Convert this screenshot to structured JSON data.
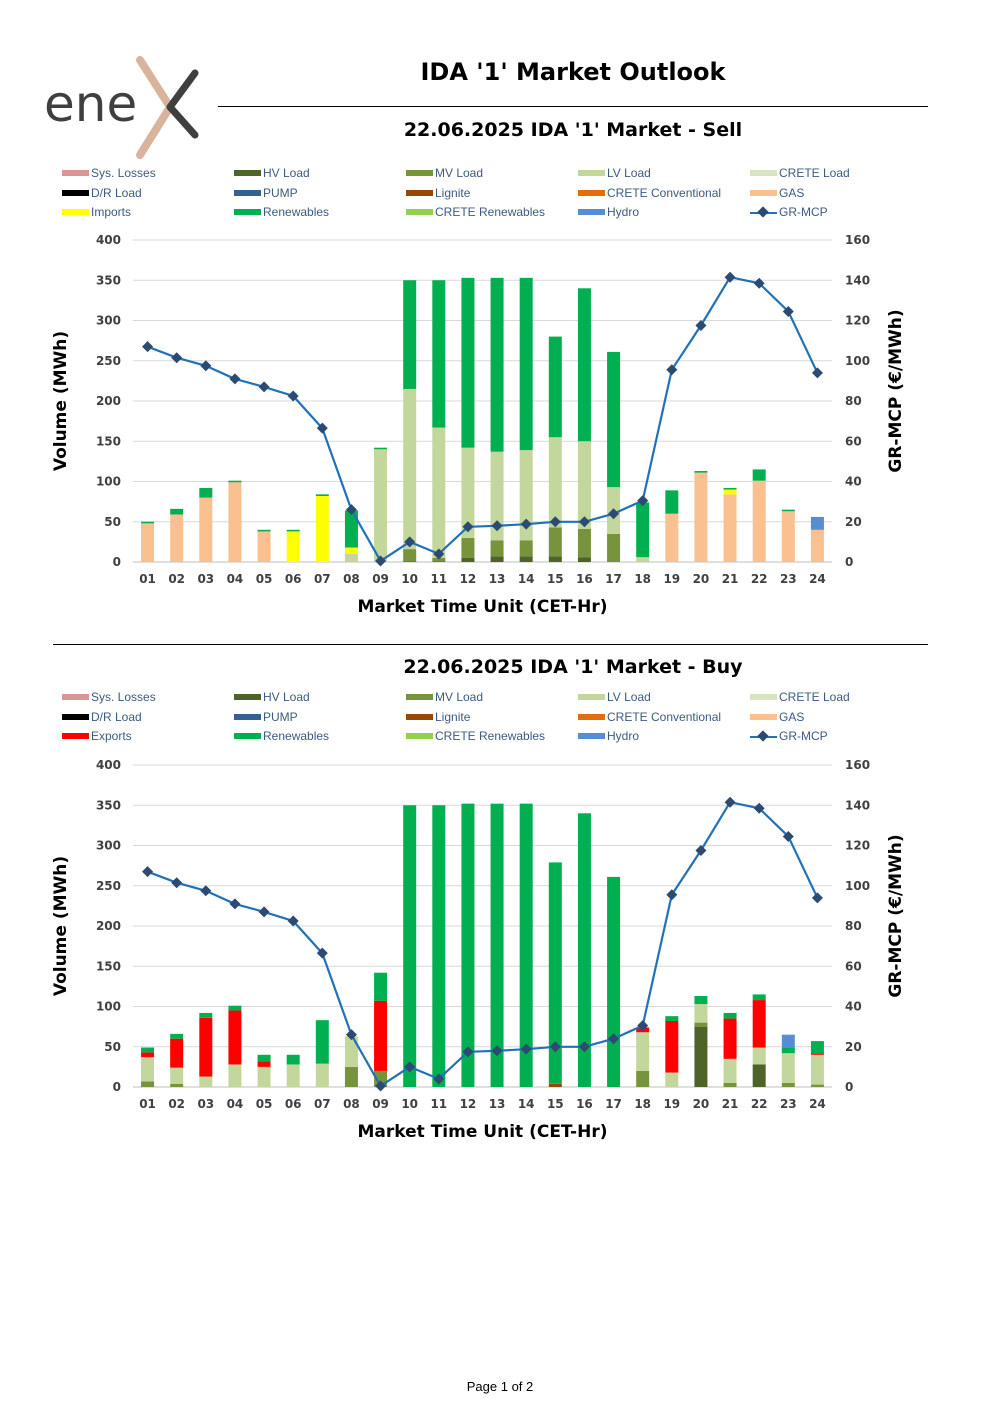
{
  "header": {
    "logo_text": "enex",
    "title": "IDA '1' Market Outlook"
  },
  "footer": {
    "page": "Page 1 of 2"
  },
  "colors": {
    "sys_losses": "#d99694",
    "hv_load": "#4f6228",
    "mv_load": "#77933c",
    "lv_load": "#c3d69b",
    "crete_load": "#d7e4bd",
    "dr_load": "#000000",
    "pump": "#366092",
    "lignite": "#974706",
    "crete_conventional": "#e46c0a",
    "gas": "#fac090",
    "imports": "#ffff00",
    "exports": "#ff0000",
    "renewables": "#00b050",
    "crete_renewables": "#92d050",
    "hydro": "#558ed5",
    "mcp_line": "#1f72b8",
    "mcp_marker": "#2c4a72"
  },
  "chart_data": [
    {
      "id": "sell",
      "type": "bar",
      "stacked": true,
      "title": "22.06.2025  IDA '1' Market - Sell",
      "xlabel": "Market Time Unit (CET-Hr)",
      "ylabel": "Volume (MWh)",
      "y2label": "GR-MCP (€/MWh)",
      "ylim": [
        0,
        400
      ],
      "y2lim": [
        0,
        160
      ],
      "yticks": [
        "0",
        "50",
        "100",
        "150",
        "200",
        "250",
        "300",
        "350",
        "400"
      ],
      "y2ticks": [
        "0",
        "20",
        "40",
        "60",
        "80",
        "100",
        "120",
        "140",
        "160"
      ],
      "grid": true,
      "legend_position": "top",
      "legend": [
        "Sys. Losses",
        "HV Load",
        "MV Load",
        "LV Load",
        "CRETE Load",
        "D/R Load",
        "PUMP",
        "Lignite",
        "CRETE Conventional",
        "GAS",
        "Imports",
        "Renewables",
        "CRETE Renewables",
        "Hydro",
        "GR-MCP"
      ],
      "legend_keys": [
        "sys_losses",
        "hv_load",
        "mv_load",
        "lv_load",
        "crete_load",
        "dr_load",
        "pump",
        "lignite",
        "crete_conventional",
        "gas",
        "imports",
        "renewables",
        "crete_renewables",
        "hydro",
        "line"
      ],
      "categories": [
        "01",
        "02",
        "03",
        "04",
        "05",
        "06",
        "07",
        "08",
        "09",
        "10",
        "11",
        "12",
        "13",
        "14",
        "15",
        "16",
        "17",
        "18",
        "19",
        "20",
        "21",
        "22",
        "23",
        "24"
      ],
      "series": [
        {
          "name": "HV Load",
          "key": "hv_load",
          "values": [
            0,
            0,
            0,
            0,
            0,
            0,
            0,
            0,
            0,
            1,
            1,
            5,
            7,
            7,
            7,
            6,
            0,
            0,
            0,
            0,
            0,
            0,
            0,
            0
          ]
        },
        {
          "name": "MV Load",
          "key": "mv_load",
          "values": [
            0,
            0,
            0,
            0,
            0,
            0,
            0,
            0,
            0,
            15,
            4,
            25,
            20,
            20,
            36,
            35,
            35,
            0,
            0,
            0,
            0,
            0,
            0,
            0
          ]
        },
        {
          "name": "LV Load",
          "key": "lv_load",
          "values": [
            0,
            0,
            0,
            0,
            0,
            0,
            0,
            10,
            140,
            199,
            162,
            112,
            110,
            112,
            112,
            109,
            58,
            6,
            0,
            0,
            0,
            0,
            0,
            0
          ]
        },
        {
          "name": "GAS",
          "key": "gas",
          "values": [
            48,
            59,
            80,
            99,
            38,
            0,
            0,
            0,
            0,
            0,
            0,
            0,
            0,
            0,
            0,
            0,
            0,
            0,
            60,
            111,
            84,
            101,
            63,
            40
          ]
        },
        {
          "name": "Imports",
          "key": "imports",
          "values": [
            0,
            0,
            0,
            0,
            0,
            38,
            82,
            8,
            0,
            0,
            0,
            0,
            0,
            0,
            0,
            0,
            0,
            0,
            0,
            0,
            6,
            0,
            0,
            0
          ]
        },
        {
          "name": "Renewables",
          "key": "renewables",
          "values": [
            2,
            7,
            12,
            2,
            2,
            2,
            2,
            46,
            2,
            135,
            183,
            211,
            216,
            214,
            125,
            190,
            168,
            68,
            29,
            2,
            2,
            14,
            2,
            0
          ]
        },
        {
          "name": "Hydro",
          "key": "hydro",
          "values": [
            0,
            0,
            0,
            0,
            0,
            0,
            0,
            0,
            0,
            0,
            0,
            0,
            0,
            0,
            0,
            0,
            0,
            0,
            0,
            0,
            0,
            0,
            0,
            16
          ]
        }
      ],
      "line": {
        "name": "GR-MCP",
        "axis": "y2",
        "values": [
          107,
          101.5,
          97.5,
          91,
          87,
          82.5,
          66.5,
          26,
          0.5,
          10,
          4,
          17.5,
          18,
          18.8,
          20,
          20,
          24,
          30.5,
          95.5,
          117.5,
          141.5,
          138.5,
          124.5,
          94
        ]
      }
    },
    {
      "id": "buy",
      "type": "bar",
      "stacked": true,
      "title": "22.06.2025  IDA '1' Market - Buy",
      "xlabel": "Market Time Unit (CET-Hr)",
      "ylabel": "Volume (MWh)",
      "y2label": "GR-MCP (€/MWh)",
      "ylim": [
        0,
        400
      ],
      "y2lim": [
        0,
        160
      ],
      "yticks": [
        "0",
        "50",
        "100",
        "150",
        "200",
        "250",
        "300",
        "350",
        "400"
      ],
      "y2ticks": [
        "0",
        "20",
        "40",
        "60",
        "80",
        "100",
        "120",
        "140",
        "160"
      ],
      "grid": true,
      "legend_position": "top",
      "legend": [
        "Sys. Losses",
        "HV Load",
        "MV Load",
        "LV Load",
        "CRETE Load",
        "D/R Load",
        "PUMP",
        "Lignite",
        "CRETE Conventional",
        "GAS",
        "Exports",
        "Renewables",
        "CRETE Renewables",
        "Hydro",
        "GR-MCP"
      ],
      "legend_keys": [
        "sys_losses",
        "hv_load",
        "mv_load",
        "lv_load",
        "crete_load",
        "dr_load",
        "pump",
        "lignite",
        "crete_conventional",
        "gas",
        "exports",
        "renewables",
        "crete_renewables",
        "hydro",
        "line"
      ],
      "categories": [
        "01",
        "02",
        "03",
        "04",
        "05",
        "06",
        "07",
        "08",
        "09",
        "10",
        "11",
        "12",
        "13",
        "14",
        "15",
        "16",
        "17",
        "18",
        "19",
        "20",
        "21",
        "22",
        "23",
        "24"
      ],
      "series": [
        {
          "name": "HV Load",
          "key": "hv_load",
          "values": [
            0,
            0,
            0,
            0,
            0,
            0,
            0,
            0,
            0,
            0,
            0,
            0,
            0,
            0,
            0,
            0,
            0,
            0,
            0,
            75,
            0,
            28,
            0,
            0
          ]
        },
        {
          "name": "MV Load",
          "key": "mv_load",
          "values": [
            7,
            4,
            0,
            0,
            0,
            0,
            0,
            25,
            20,
            0,
            0,
            0,
            0,
            0,
            0,
            0,
            0,
            20,
            0,
            5,
            5,
            0,
            5,
            3
          ]
        },
        {
          "name": "LV Load",
          "key": "lv_load",
          "values": [
            30,
            20,
            13,
            28,
            25,
            28,
            29,
            38,
            0,
            0,
            0,
            0,
            0,
            0,
            0,
            0,
            0,
            48,
            18,
            23,
            30,
            21,
            37,
            37
          ]
        },
        {
          "name": "Lignite",
          "key": "lignite",
          "values": [
            0,
            0,
            0,
            0,
            0,
            0,
            0,
            0,
            0,
            0,
            0,
            0,
            0,
            0,
            4,
            0,
            0,
            0,
            0,
            0,
            0,
            0,
            0,
            0
          ]
        },
        {
          "name": "Exports",
          "key": "exports",
          "values": [
            6,
            36,
            73,
            67,
            7,
            0,
            0,
            0,
            87,
            0,
            0,
            0,
            0,
            0,
            0,
            0,
            0,
            6,
            64,
            0,
            50,
            59,
            0,
            2
          ]
        },
        {
          "name": "Renewables",
          "key": "renewables",
          "values": [
            6,
            6,
            6,
            6,
            8,
            12,
            54,
            0,
            35,
            350,
            350,
            352,
            352,
            352,
            275,
            340,
            261,
            0,
            6,
            10,
            7,
            7,
            7,
            15
          ]
        },
        {
          "name": "Hydro",
          "key": "hydro",
          "values": [
            0,
            0,
            0,
            0,
            0,
            0,
            0,
            0,
            0,
            0,
            0,
            0,
            0,
            0,
            0,
            0,
            0,
            0,
            0,
            0,
            0,
            0,
            16,
            0
          ]
        }
      ],
      "line": {
        "name": "GR-MCP",
        "axis": "y2",
        "values": [
          107,
          101.5,
          97.5,
          91,
          87,
          82.5,
          66.5,
          26,
          0.5,
          10,
          4,
          17.5,
          18,
          18.8,
          20,
          20,
          24,
          30.5,
          95.5,
          117.5,
          141.5,
          138.5,
          124.5,
          94
        ]
      }
    }
  ]
}
